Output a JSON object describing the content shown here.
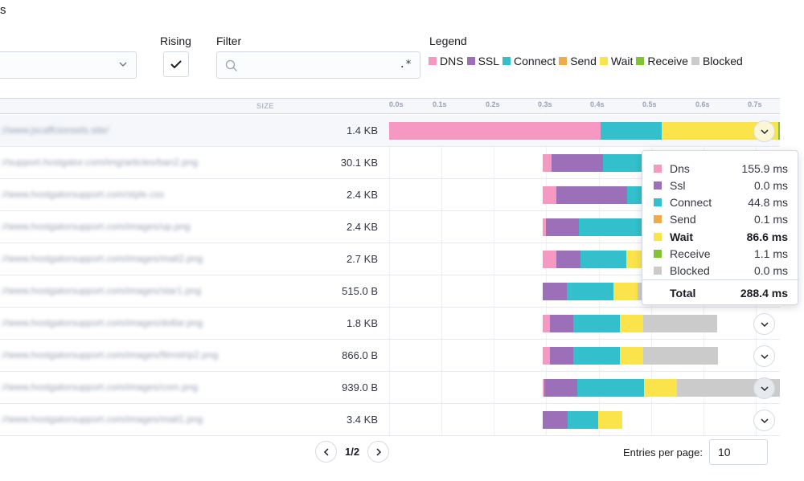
{
  "header": {
    "title_fragment": "s"
  },
  "controls": {
    "rising_label": "Rising",
    "filter_label": "Filter",
    "filter_value": "",
    "filter_regex": ".*",
    "legend_label": "Legend",
    "legend": [
      {
        "name": "DNS",
        "color": "#f598c2"
      },
      {
        "name": "SSL",
        "color": "#9c6fb9"
      },
      {
        "name": "Connect",
        "color": "#33c0cc"
      },
      {
        "name": "Send",
        "color": "#f2a94a"
      },
      {
        "name": "Wait",
        "color": "#fbe34c"
      },
      {
        "name": "Receive",
        "color": "#7fc433"
      },
      {
        "name": "Blocked",
        "color": "#cbcbcb"
      }
    ]
  },
  "table": {
    "size_header": "SIZE",
    "ticks": [
      "0.0s",
      "0.1s",
      "0.2s",
      "0.3s",
      "0.4s",
      "0.5s",
      "0.6s",
      "0.7s"
    ],
    "rows": [
      {
        "url": "://www.jscaffcionsels.site/",
        "size": "1.4 KB"
      },
      {
        "url": "://support.hostgator.com/img/articles/ban2.png",
        "size": "30.1 KB"
      },
      {
        "url": "://www.hostgatorsupport.com/style.css",
        "size": "2.4 KB"
      },
      {
        "url": "://www.hostgatorsupport.com/images/up.png",
        "size": "2.4 KB"
      },
      {
        "url": "://www.hostgatorsupport.com/images/mail2.png",
        "size": "2.7 KB"
      },
      {
        "url": "://www.hostgatorsupport.com/images/star1.png",
        "size": "515.0 B"
      },
      {
        "url": "://www.hostgatorsupport.com/images/dollar.png",
        "size": "1.8 KB"
      },
      {
        "url": "://www.hostgatorsupport.com/images/filmstrip2.png",
        "size": "866.0 B"
      },
      {
        "url": "://www.hostgatorsupport.com/images/com.png",
        "size": "939.0 B"
      },
      {
        "url": "://www.hostgatorsupport.com/images/mail1.png",
        "size": "3.4 KB"
      }
    ]
  },
  "tooltip": {
    "items": [
      {
        "name": "Dns",
        "value": "155.9 ms",
        "color": "#f598c2"
      },
      {
        "name": "Ssl",
        "value": "0.0 ms",
        "color": "#9c6fb9"
      },
      {
        "name": "Connect",
        "value": "44.8 ms",
        "color": "#33c0cc"
      },
      {
        "name": "Send",
        "value": "0.1 ms",
        "color": "#f2a94a"
      },
      {
        "name": "Wait",
        "value": "86.6 ms",
        "color": "#fbe34c"
      },
      {
        "name": "Receive",
        "value": "1.1 ms",
        "color": "#7fc433"
      },
      {
        "name": "Blocked",
        "value": "0.0 ms",
        "color": "#cbcbcb"
      }
    ],
    "total_label": "Total",
    "total_value": "288.4 ms"
  },
  "pagination": {
    "page_text": "1/2",
    "entries_label": "Entries per page:",
    "entries_value": "10"
  }
}
